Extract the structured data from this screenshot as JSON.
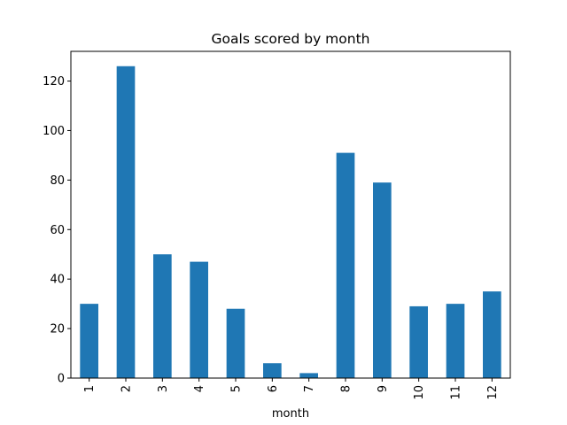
{
  "chart_data": {
    "type": "bar",
    "title": "Goals scored by month",
    "xlabel": "month",
    "ylabel": "",
    "categories": [
      "1",
      "2",
      "3",
      "4",
      "5",
      "6",
      "7",
      "8",
      "9",
      "10",
      "11",
      "12"
    ],
    "values": [
      30,
      126,
      50,
      47,
      28,
      6,
      2,
      91,
      79,
      29,
      30,
      35
    ],
    "ylim": [
      0,
      132
    ],
    "yticks": [
      0,
      20,
      40,
      60,
      80,
      100,
      120
    ],
    "x_tick_rotation": 90,
    "grid": false,
    "legend": "none",
    "bar_color": "#1f77b4"
  }
}
